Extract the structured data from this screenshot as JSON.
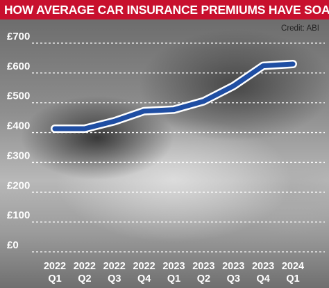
{
  "title": "HOW AVERAGE CAR INSURANCE PREMIUMS HAVE SOARED",
  "credit": "Credit: ABI",
  "colors": {
    "title_background": "#c8102e",
    "title_text": "#ffffff",
    "line": "#1f4ea3",
    "line_outline": "#ffffff",
    "grid": "#ffffff",
    "tick_text": "#ffffff"
  },
  "chart_data": {
    "type": "line",
    "title": "HOW AVERAGE CAR INSURANCE PREMIUMS HAVE SOARED",
    "xlabel": "",
    "ylabel": "",
    "categories": [
      [
        "2022",
        "Q1"
      ],
      [
        "2022",
        "Q2"
      ],
      [
        "2022",
        "Q3"
      ],
      [
        "2022",
        "Q4"
      ],
      [
        "2023",
        "Q1"
      ],
      [
        "2023",
        "Q2"
      ],
      [
        "2023",
        "Q3"
      ],
      [
        "2023",
        "Q4"
      ],
      [
        "2024",
        "Q1"
      ]
    ],
    "series": [
      {
        "values": [
          413,
          413,
          438,
          472,
          477,
          505,
          556,
          624,
          630
        ]
      }
    ],
    "ylim": [
      0,
      700
    ],
    "yticks": [
      0,
      100,
      200,
      300,
      400,
      500,
      600,
      700
    ],
    "ytick_labels": [
      "£0",
      "£100",
      "£200",
      "£300",
      "£400",
      "£500",
      "£600",
      "£700"
    ],
    "grid": "horizontal dashed",
    "legend": "none"
  }
}
